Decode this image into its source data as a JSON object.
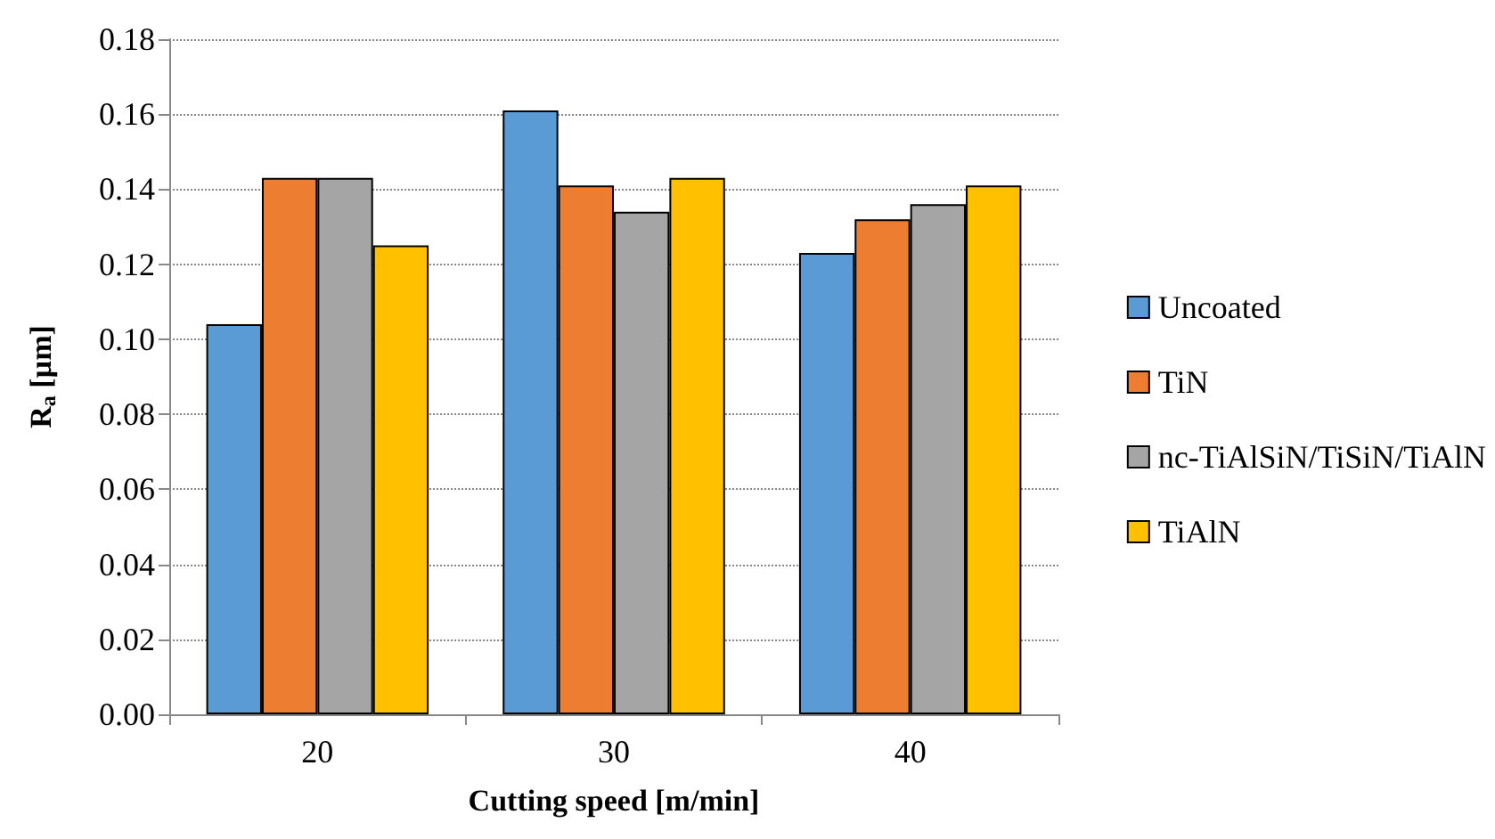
{
  "chart_data": {
    "type": "bar",
    "xlabel": "Cutting speed [m/min]",
    "ylabel": "R$_{a}$ [µm]",
    "categories": [
      "20",
      "30",
      "40"
    ],
    "series": [
      {
        "name": "Uncoated",
        "color": "#5b9bd5",
        "values": [
          0.104,
          0.161,
          0.123
        ]
      },
      {
        "name": "TiN",
        "color": "#ed7d31",
        "values": [
          0.143,
          0.141,
          0.132
        ]
      },
      {
        "name": "nc-TiAlSiN/TiSiN/TiAlN",
        "color": "#a5a5a5",
        "values": [
          0.143,
          0.134,
          0.136
        ]
      },
      {
        "name": "TiAlN",
        "color": "#ffc000",
        "values": [
          0.125,
          0.143,
          0.141
        ]
      }
    ],
    "ylim": [
      0,
      0.18
    ],
    "yticks": [
      {
        "value": 0,
        "label": "0.00"
      },
      {
        "value": 0.02,
        "label": "0.02"
      },
      {
        "value": 0.04,
        "label": "0.04"
      },
      {
        "value": 0.06,
        "label": "0.06"
      },
      {
        "value": 0.08,
        "label": "0.08"
      },
      {
        "value": 0.1,
        "label": "0.10"
      },
      {
        "value": 0.12,
        "label": "0.12"
      },
      {
        "value": 0.14,
        "label": "0.14"
      },
      {
        "value": 0.16,
        "label": "0.16"
      },
      {
        "value": 0.18,
        "label": "0.18"
      }
    ],
    "grid": "y",
    "legend": "right"
  }
}
